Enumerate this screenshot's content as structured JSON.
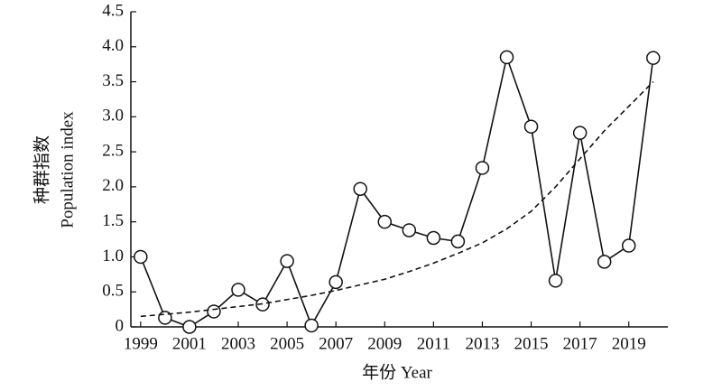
{
  "chart_data": {
    "type": "line",
    "x_label": "年份 Year",
    "y_label": [
      "种群指数",
      "Population index"
    ],
    "x": [
      1999,
      2000,
      2001,
      2002,
      2003,
      2004,
      2005,
      2006,
      2007,
      2008,
      2009,
      2010,
      2011,
      2012,
      2013,
      2014,
      2015,
      2016,
      2017,
      2018,
      2019,
      2020
    ],
    "series": [
      {
        "color": "#111111",
        "marker": "circle",
        "values": [
          1.0,
          0.13,
          0.0,
          0.22,
          0.53,
          0.32,
          0.94,
          0.02,
          0.64,
          1.97,
          1.5,
          1.38,
          1.27,
          1.22,
          2.27,
          3.85,
          2.86,
          0.66,
          2.77,
          0.93,
          1.16,
          3.84
        ]
      },
      {
        "color": "#111111",
        "dashed": true,
        "values": [
          0.15,
          0.18,
          0.21,
          0.25,
          0.29,
          0.33,
          0.39,
          0.45,
          0.52,
          0.6,
          0.68,
          0.79,
          0.91,
          1.05,
          1.2,
          1.4,
          1.65,
          2.0,
          2.4,
          2.8,
          3.15,
          3.5
        ]
      }
    ],
    "xlim": [
      1998.6,
      2020.6
    ],
    "xticks": [
      1999,
      2001,
      2003,
      2005,
      2007,
      2009,
      2011,
      2013,
      2015,
      2017,
      2019
    ],
    "ylim": [
      0,
      4.5
    ],
    "yticks": [
      0,
      0.5,
      {
        "value": 1,
        "label": "1.0"
      },
      1.5,
      {
        "value": 2,
        "label": "2.0"
      },
      2.5,
      {
        "value": 3,
        "label": "3.0"
      },
      3.5,
      {
        "value": 4,
        "label": "4.0"
      },
      4.5
    ]
  }
}
